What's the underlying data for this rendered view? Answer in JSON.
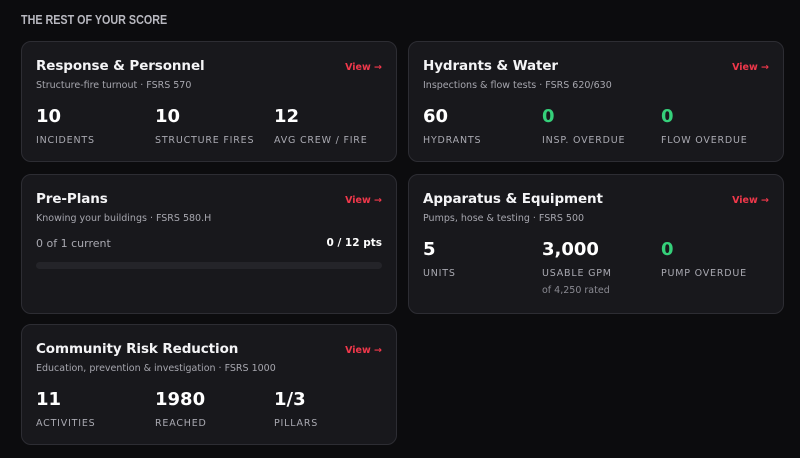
{
  "section_title": "THE REST OF YOUR SCORE",
  "view_label": "View →",
  "cards": {
    "response": {
      "title": "Response & Personnel",
      "subtitle": "Structure-fire turnout · FSRS 570",
      "stats": [
        {
          "value": "10",
          "label": "INCIDENTS"
        },
        {
          "value": "10",
          "label": "STRUCTURE FIRES"
        },
        {
          "value": "12",
          "label": "AVG CREW / FIRE"
        }
      ]
    },
    "hydrants": {
      "title": "Hydrants & Water",
      "subtitle": "Inspections & flow tests · FSRS 620/630",
      "stats": [
        {
          "value": "60",
          "label": "HYDRANTS"
        },
        {
          "value": "0",
          "label": "INSP. OVERDUE"
        },
        {
          "value": "0",
          "label": "FLOW OVERDUE"
        }
      ]
    },
    "preplans": {
      "title": "Pre-Plans",
      "subtitle": "Knowing your buildings · FSRS 580.H",
      "current_text": "0 of 1 current",
      "points_text": "0 / 12 pts",
      "progress_fraction": 0
    },
    "apparatus": {
      "title": "Apparatus & Equipment",
      "subtitle": "Pumps, hose & testing · FSRS 500",
      "stats": [
        {
          "value": "5",
          "label": "UNITS"
        },
        {
          "value": "3,000",
          "label": "USABLE GPM",
          "note": "of 4,250 rated"
        },
        {
          "value": "0",
          "label": "PUMP OVERDUE"
        }
      ]
    },
    "community": {
      "title": "Community Risk Reduction",
      "subtitle": "Education, prevention & investigation · FSRS 1000",
      "stats": [
        {
          "value": "11",
          "label": "ACTIVITIES"
        },
        {
          "value": "1980",
          "label": "REACHED"
        },
        {
          "value": "1/3",
          "label": "PILLARS"
        }
      ]
    }
  },
  "colors": {
    "accent": "#f0384b",
    "good": "#35d07a",
    "card_bg": "#18181c",
    "page_bg": "#0c0c0e"
  }
}
